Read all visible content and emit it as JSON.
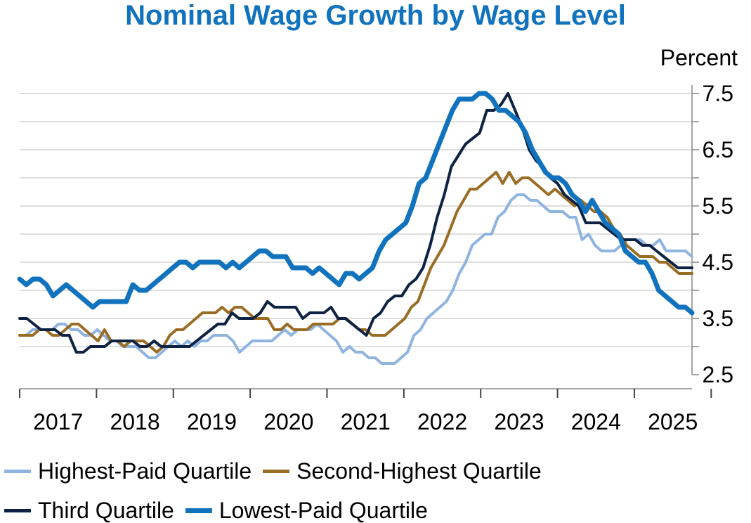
{
  "chart_data": {
    "type": "line",
    "title": "Nominal Wage Growth by Wage Level",
    "ylabel": "Percent",
    "xlabel": "",
    "ylim": [
      2.5,
      7.5
    ],
    "yticks": [
      "7.5",
      "6.5",
      "5.5",
      "4.5",
      "3.5",
      "2.5"
    ],
    "xticks": [
      "2017",
      "2018",
      "2019",
      "2020",
      "2021",
      "2022",
      "2023",
      "2024",
      "2025"
    ],
    "x_start": 2016.0,
    "x_end": 2024.75,
    "grid": true,
    "y_axis_side": "right",
    "legend_placement": "bottom",
    "series": [
      {
        "name": "Highest-Paid Quartile",
        "color": "#90b4e0",
        "width": 4,
        "values": [
          3.2,
          3.2,
          3.3,
          3.3,
          3.3,
          3.3,
          3.4,
          3.4,
          3.3,
          3.3,
          3.2,
          3.2,
          3.3,
          3.2,
          3.1,
          3.1,
          3.0,
          3.0,
          3.0,
          2.9,
          2.8,
          2.8,
          2.9,
          3.0,
          3.1,
          3.0,
          3.1,
          3.0,
          3.1,
          3.1,
          3.2,
          3.2,
          3.2,
          3.1,
          2.9,
          3.0,
          3.1,
          3.1,
          3.1,
          3.1,
          3.2,
          3.3,
          3.2,
          3.3,
          3.3,
          3.3,
          3.4,
          3.3,
          3.2,
          3.1,
          2.9,
          3.0,
          2.9,
          2.9,
          2.8,
          2.8,
          2.7,
          2.7,
          2.7,
          2.8,
          2.9,
          3.2,
          3.3,
          3.5,
          3.6,
          3.7,
          3.8,
          4.0,
          4.3,
          4.5,
          4.8,
          4.9,
          5.0,
          5.0,
          5.3,
          5.4,
          5.6,
          5.7,
          5.7,
          5.6,
          5.6,
          5.5,
          5.4,
          5.4,
          5.4,
          5.3,
          5.3,
          4.9,
          5.0,
          4.8,
          4.7,
          4.7,
          4.7,
          4.8,
          4.9,
          4.9,
          4.9,
          4.8,
          4.8,
          4.9,
          4.7,
          4.7,
          4.7,
          4.7,
          4.6
        ]
      },
      {
        "name": "Second-Highest Quartile",
        "color": "#9a6d25",
        "width": 4,
        "values": [
          3.2,
          3.2,
          3.2,
          3.3,
          3.3,
          3.2,
          3.2,
          3.3,
          3.4,
          3.4,
          3.3,
          3.2,
          3.1,
          3.3,
          3.1,
          3.1,
          3.0,
          3.1,
          3.1,
          3.1,
          3.0,
          2.9,
          3.0,
          3.2,
          3.3,
          3.3,
          3.4,
          3.5,
          3.6,
          3.6,
          3.6,
          3.7,
          3.6,
          3.7,
          3.7,
          3.6,
          3.5,
          3.5,
          3.5,
          3.3,
          3.3,
          3.4,
          3.3,
          3.3,
          3.3,
          3.4,
          3.4,
          3.4,
          3.4,
          3.5,
          3.5,
          3.4,
          3.3,
          3.3,
          3.2,
          3.2,
          3.2,
          3.3,
          3.4,
          3.5,
          3.7,
          3.8,
          4.1,
          4.4,
          4.6,
          4.8,
          5.1,
          5.4,
          5.6,
          5.8,
          5.8,
          5.9,
          6.0,
          6.1,
          5.9,
          6.1,
          5.9,
          6.0,
          6.0,
          5.9,
          5.8,
          5.7,
          5.8,
          5.7,
          5.6,
          5.5,
          5.6,
          5.5,
          5.4,
          5.4,
          5.3,
          5.1,
          5.0,
          4.8,
          4.7,
          4.6,
          4.6,
          4.6,
          4.5,
          4.5,
          4.4,
          4.3,
          4.3,
          4.3
        ]
      },
      {
        "name": "Third Quartile",
        "color": "#0e2343",
        "width": 4,
        "values": [
          3.5,
          3.5,
          3.4,
          3.3,
          3.3,
          3.3,
          3.2,
          3.2,
          2.9,
          2.9,
          3.0,
          3.0,
          3.0,
          3.1,
          3.1,
          3.1,
          3.1,
          3.0,
          3.0,
          3.1,
          3.0,
          3.0,
          3.0,
          3.0,
          3.0,
          3.1,
          3.2,
          3.3,
          3.4,
          3.4,
          3.6,
          3.5,
          3.5,
          3.5,
          3.6,
          3.8,
          3.7,
          3.7,
          3.7,
          3.7,
          3.5,
          3.6,
          3.6,
          3.6,
          3.7,
          3.5,
          3.5,
          3.4,
          3.3,
          3.2,
          3.5,
          3.6,
          3.8,
          3.9,
          3.9,
          4.1,
          4.2,
          4.4,
          4.8,
          5.3,
          5.7,
          6.2,
          6.4,
          6.6,
          6.7,
          6.8,
          7.2,
          7.2,
          7.3,
          7.5,
          7.2,
          6.9,
          6.5,
          6.3,
          6.2,
          6.0,
          5.9,
          5.7,
          5.6,
          5.5,
          5.2,
          5.2,
          5.2,
          5.1,
          5.0,
          4.9,
          4.9,
          4.9,
          4.8,
          4.8,
          4.7,
          4.6,
          4.5,
          4.4,
          4.4,
          4.4
        ]
      },
      {
        "name": "Lowest-Paid Quartile",
        "color": "#1173bd",
        "width": 7,
        "values": [
          4.2,
          4.1,
          4.2,
          4.2,
          4.1,
          3.9,
          4.0,
          4.1,
          4.0,
          3.9,
          3.8,
          3.7,
          3.8,
          3.8,
          3.8,
          3.8,
          3.8,
          4.1,
          4.0,
          4.0,
          4.1,
          4.2,
          4.3,
          4.4,
          4.5,
          4.5,
          4.4,
          4.5,
          4.5,
          4.5,
          4.5,
          4.4,
          4.5,
          4.4,
          4.5,
          4.6,
          4.7,
          4.7,
          4.6,
          4.6,
          4.6,
          4.4,
          4.4,
          4.4,
          4.3,
          4.4,
          4.3,
          4.2,
          4.1,
          4.3,
          4.3,
          4.2,
          4.3,
          4.4,
          4.7,
          4.9,
          5.0,
          5.1,
          5.2,
          5.5,
          5.9,
          6.0,
          6.3,
          6.6,
          6.9,
          7.2,
          7.4,
          7.4,
          7.4,
          7.5,
          7.5,
          7.4,
          7.2,
          7.2,
          7.1,
          7.0,
          6.8,
          6.5,
          6.3,
          6.1,
          6.0,
          6.0,
          5.9,
          5.7,
          5.6,
          5.4,
          5.6,
          5.4,
          5.2,
          5.1,
          5.0,
          4.7,
          4.6,
          4.5,
          4.5,
          4.3,
          4.0,
          3.9,
          3.8,
          3.7,
          3.7,
          3.6
        ]
      }
    ]
  },
  "legend": {
    "items": [
      {
        "label": "Highest-Paid Quartile",
        "color": "#90b4e0"
      },
      {
        "label": "Second-Highest Quartile",
        "color": "#9a6d25"
      },
      {
        "label": "Third Quartile",
        "color": "#0e2343"
      },
      {
        "label": "Lowest-Paid Quartile",
        "color": "#1173bd"
      }
    ]
  }
}
